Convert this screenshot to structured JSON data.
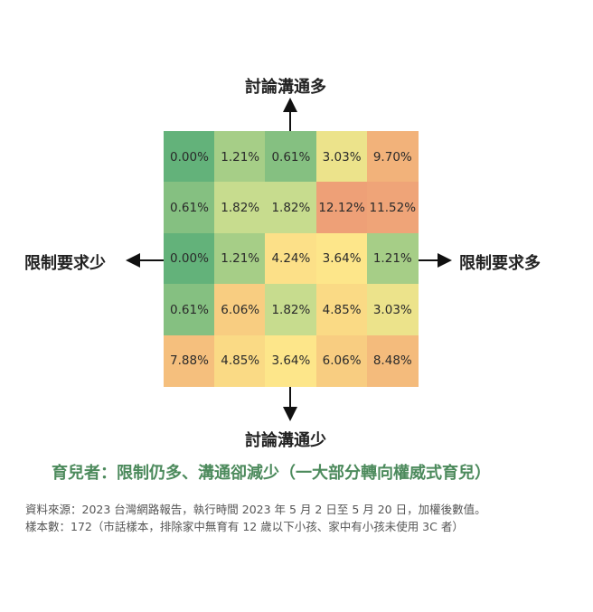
{
  "chart_data": {
    "type": "heatmap",
    "title": "育兒者：限制仍多、溝通卻減少（一大部分轉向權威式育兒）",
    "y_axis": {
      "top_label": "討論溝通多",
      "bottom_label": "討論溝通少"
    },
    "x_axis": {
      "left_label": "限制要求少",
      "right_label": "限制要求多"
    },
    "unit": "%",
    "rows": [
      [
        0.0,
        1.21,
        0.61,
        3.03,
        9.7
      ],
      [
        0.61,
        1.82,
        1.82,
        12.12,
        11.52
      ],
      [
        0.0,
        1.21,
        4.24,
        3.64,
        1.21
      ],
      [
        0.61,
        6.06,
        1.82,
        4.85,
        3.03
      ],
      [
        7.88,
        4.85,
        3.64,
        6.06,
        8.48
      ]
    ],
    "labels": [
      [
        "0.00%",
        "1.21%",
        "0.61%",
        "3.03%",
        "9.70%"
      ],
      [
        "0.61%",
        "1.82%",
        "1.82%",
        "12.12%",
        "11.52%"
      ],
      [
        "0.00%",
        "1.21%",
        "4.24%",
        "3.64%",
        "1.21%"
      ],
      [
        "0.61%",
        "6.06%",
        "1.82%",
        "4.85%",
        "3.03%"
      ],
      [
        "7.88%",
        "4.85%",
        "3.64%",
        "6.06%",
        "8.48%"
      ]
    ],
    "color_scale": [
      "#63b27a",
      "#c6dc8e",
      "#fde68a",
      "#f7c97f",
      "#eea077"
    ]
  },
  "notes": {
    "source": "資料來源：2023 台灣網路報告，執行時間 2023 年 5 月 2 日至 5 月 20 日，加權後數值。",
    "sample": "樣本數：172（市話樣本，排除家中無育有 12 歲以下小孩、家中有小孩未使用 3C 者）"
  }
}
